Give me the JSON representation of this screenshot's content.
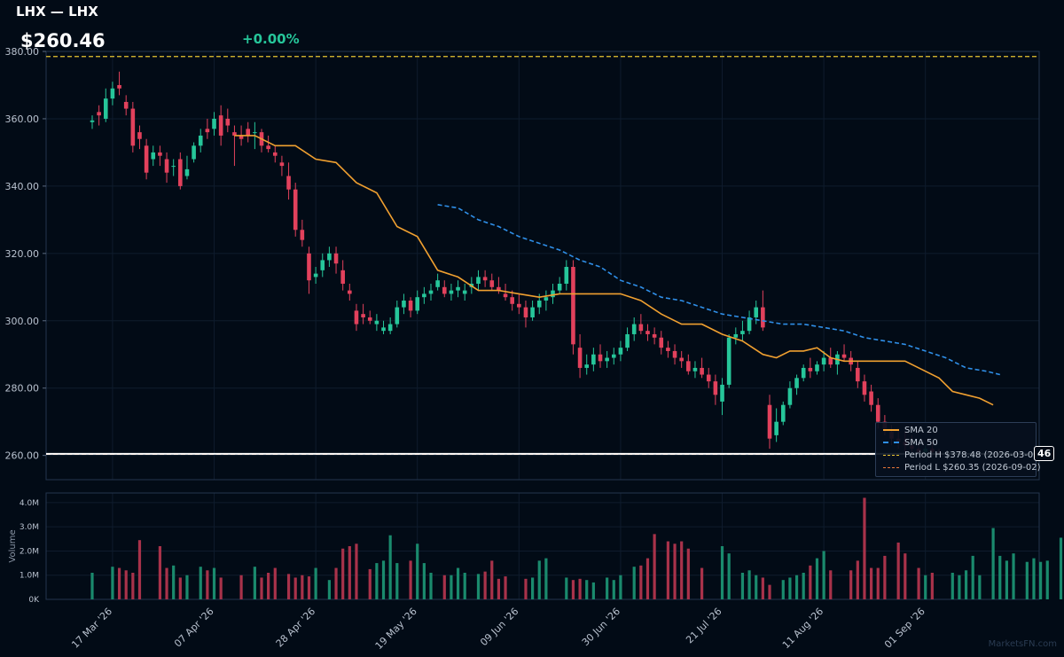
{
  "header": {
    "ticker": "LHX — LHX",
    "price": "$260.46",
    "change": "+0.00%"
  },
  "watermark": "MarketsFN.com",
  "price_tag": "46",
  "colors": {
    "up": "#26c69a",
    "down": "#e2415c",
    "sma20": "#f0a030",
    "sma50": "#2f8fe8",
    "period_high": "#e8c531",
    "period_low": "#e8783a",
    "last_price": "#ffffff"
  },
  "legend": [
    {
      "label": "SMA 20",
      "style": "solid",
      "color": "#f0a030"
    },
    {
      "label": "SMA 50",
      "style": "dashed",
      "color": "#2f8fe8"
    },
    {
      "label": "Period H $378.48 (2026-03-02)",
      "style": "dashed",
      "color": "#e8c531"
    },
    {
      "label": "Period L $260.35 (2026-09-02)",
      "style": "dashed",
      "color": "#e8783a"
    }
  ],
  "chart_data": [
    {
      "type": "candlestick",
      "ylim": [
        252.8,
        380.0
      ],
      "yticks": [
        260,
        280,
        300,
        320,
        340,
        360,
        380
      ],
      "ytick_labels": [
        "260.00",
        "280.00",
        "300.00",
        "320.00",
        "340.00",
        "360.00",
        "380.00"
      ],
      "x_labels": [
        {
          "i": 3,
          "label": "17 Mar '26"
        },
        {
          "i": 18,
          "label": "07 Apr '26"
        },
        {
          "i": 33,
          "label": "28 Apr '26"
        },
        {
          "i": 48,
          "label": "19 May '26"
        },
        {
          "i": 63,
          "label": "09 Jun '26"
        },
        {
          "i": 78,
          "label": "30 Jun '26"
        },
        {
          "i": 93,
          "label": "21 Jul '26"
        },
        {
          "i": 108,
          "label": "11 Aug '26"
        },
        {
          "i": 123,
          "label": "01 Sep '26"
        }
      ],
      "period_high": 378.48,
      "period_low": 260.35,
      "last_price": 260.46,
      "candles": [
        [
          359,
          361,
          357,
          359.5
        ],
        [
          362,
          364,
          358,
          361
        ],
        [
          360,
          369,
          359,
          366
        ],
        [
          366,
          371,
          364,
          369
        ],
        [
          370,
          374,
          367,
          369
        ],
        [
          365,
          367,
          361,
          363
        ],
        [
          363,
          365,
          350,
          352
        ],
        [
          356,
          358,
          351,
          354
        ],
        [
          352,
          354,
          342,
          344
        ],
        [
          348,
          352,
          346,
          350
        ],
        [
          350,
          352,
          346,
          349
        ],
        [
          348,
          350,
          341,
          344
        ],
        [
          346,
          348,
          343,
          346
        ],
        [
          348,
          350,
          339,
          340
        ],
        [
          343,
          349,
          342,
          345
        ],
        [
          348,
          353,
          347,
          352
        ],
        [
          352,
          357,
          350,
          355
        ],
        [
          357,
          360,
          354,
          356
        ],
        [
          357,
          362,
          355,
          360
        ],
        [
          361,
          364,
          352,
          355
        ],
        [
          360,
          363,
          356,
          358
        ],
        [
          356,
          358,
          346,
          355
        ],
        [
          355,
          358,
          352,
          354
        ],
        [
          357,
          359,
          353,
          355
        ],
        [
          356,
          359,
          351,
          356
        ],
        [
          356,
          357,
          350,
          352
        ],
        [
          352,
          355,
          350,
          351
        ],
        [
          350,
          352,
          347,
          349
        ],
        [
          347,
          349,
          343,
          346
        ],
        [
          343,
          347,
          336,
          339
        ],
        [
          339,
          341,
          325,
          327
        ],
        [
          327,
          330,
          322,
          324
        ],
        [
          320,
          322,
          308,
          312
        ],
        [
          313,
          316,
          311,
          314
        ],
        [
          315,
          320,
          313,
          318
        ],
        [
          318,
          322,
          316,
          320
        ],
        [
          320,
          322,
          314,
          317
        ],
        [
          315,
          318,
          309,
          311
        ],
        [
          309,
          311,
          306,
          308
        ],
        [
          303,
          305,
          297,
          299
        ],
        [
          302,
          305,
          299,
          301
        ],
        [
          301,
          303,
          299,
          300
        ],
        [
          299,
          302,
          297,
          300
        ],
        [
          297,
          300,
          296,
          298
        ],
        [
          297,
          301,
          296,
          299
        ],
        [
          299,
          306,
          298,
          304
        ],
        [
          304,
          308,
          302,
          306
        ],
        [
          306,
          307,
          301,
          303
        ],
        [
          303,
          309,
          302,
          307
        ],
        [
          307,
          310,
          305,
          308
        ],
        [
          308,
          311,
          306,
          309
        ],
        [
          310,
          314,
          309,
          312
        ],
        [
          310,
          312,
          307,
          308
        ],
        [
          308,
          311,
          306,
          309
        ],
        [
          309,
          312,
          307,
          310
        ],
        [
          308,
          311,
          306,
          309
        ],
        [
          310,
          313,
          308,
          311
        ],
        [
          311,
          315,
          309,
          313
        ],
        [
          313,
          315,
          310,
          312
        ],
        [
          312,
          314,
          309,
          310
        ],
        [
          310,
          313,
          308,
          309
        ],
        [
          308,
          311,
          306,
          307
        ],
        [
          307,
          309,
          303,
          305
        ],
        [
          305,
          308,
          302,
          304
        ],
        [
          304,
          306,
          298,
          301
        ],
        [
          301,
          306,
          300,
          304
        ],
        [
          304,
          308,
          302,
          306
        ],
        [
          306,
          309,
          303,
          307
        ],
        [
          307,
          311,
          305,
          309
        ],
        [
          309,
          313,
          308,
          311
        ],
        [
          311,
          318,
          309,
          316
        ],
        [
          316,
          318,
          290,
          293
        ],
        [
          292,
          296,
          283,
          286
        ],
        [
          286,
          290,
          284,
          287
        ],
        [
          287,
          292,
          285,
          290
        ],
        [
          290,
          293,
          286,
          288
        ],
        [
          288,
          291,
          286,
          289
        ],
        [
          289,
          292,
          287,
          290
        ],
        [
          290,
          294,
          288,
          292
        ],
        [
          292,
          298,
          291,
          296
        ],
        [
          296,
          301,
          294,
          299
        ],
        [
          299,
          302,
          296,
          297
        ],
        [
          297,
          299,
          294,
          296
        ],
        [
          296,
          298,
          293,
          295
        ],
        [
          295,
          297,
          290,
          292
        ],
        [
          292,
          294,
          289,
          291
        ],
        [
          291,
          293,
          287,
          289
        ],
        [
          289,
          291,
          286,
          288
        ],
        [
          288,
          290,
          284,
          285
        ],
        [
          285,
          288,
          283,
          286
        ],
        [
          286,
          289,
          283,
          284
        ],
        [
          284,
          286,
          280,
          282
        ],
        [
          282,
          284,
          275,
          278
        ],
        [
          276,
          283,
          272,
          281
        ],
        [
          281,
          296,
          280,
          295
        ],
        [
          295,
          298,
          293,
          296
        ],
        [
          296,
          300,
          294,
          297
        ],
        [
          297,
          303,
          296,
          301
        ],
        [
          301,
          306,
          299,
          304
        ],
        [
          304,
          309,
          297,
          298
        ],
        [
          275,
          278,
          262,
          265
        ],
        [
          266,
          274,
          264,
          270
        ],
        [
          270,
          276,
          269,
          275
        ],
        [
          275,
          282,
          274,
          280
        ],
        [
          280,
          284,
          278,
          283
        ],
        [
          283,
          287,
          282,
          286
        ],
        [
          286,
          289,
          283,
          285
        ],
        [
          285,
          288,
          284,
          287
        ],
        [
          287,
          291,
          285,
          289
        ],
        [
          289,
          292,
          286,
          287
        ],
        [
          287,
          291,
          284,
          290
        ],
        [
          290,
          293,
          288,
          289
        ],
        [
          289,
          291,
          285,
          287
        ],
        [
          286,
          288,
          280,
          282
        ],
        [
          282,
          284,
          276,
          278
        ],
        [
          279,
          281,
          273,
          275
        ],
        [
          275,
          277,
          268,
          270
        ],
        [
          270,
          272,
          266,
          268
        ],
        [
          267,
          269,
          263,
          265
        ],
        [
          265,
          268,
          262,
          264
        ],
        [
          264,
          267,
          261,
          263
        ],
        [
          263,
          266,
          261,
          262
        ],
        [
          262,
          264,
          260,
          261
        ],
        [
          261,
          263,
          260,
          262
        ],
        [
          262,
          264,
          260,
          261
        ],
        [
          261,
          262,
          260,
          260.5
        ]
      ],
      "sma20": [
        {
          "i": 21,
          "v": 355
        },
        {
          "i": 24,
          "v": 355
        },
        {
          "i": 27,
          "v": 352
        },
        {
          "i": 30,
          "v": 352
        },
        {
          "i": 33,
          "v": 348
        },
        {
          "i": 36,
          "v": 347
        },
        {
          "i": 39,
          "v": 341
        },
        {
          "i": 42,
          "v": 338
        },
        {
          "i": 45,
          "v": 328
        },
        {
          "i": 48,
          "v": 325
        },
        {
          "i": 51,
          "v": 315
        },
        {
          "i": 54,
          "v": 313
        },
        {
          "i": 57,
          "v": 309
        },
        {
          "i": 60,
          "v": 309
        },
        {
          "i": 63,
          "v": 308
        },
        {
          "i": 66,
          "v": 307
        },
        {
          "i": 69,
          "v": 308
        },
        {
          "i": 72,
          "v": 308
        },
        {
          "i": 75,
          "v": 308
        },
        {
          "i": 78,
          "v": 308
        },
        {
          "i": 81,
          "v": 306
        },
        {
          "i": 84,
          "v": 302
        },
        {
          "i": 87,
          "v": 299
        },
        {
          "i": 90,
          "v": 299
        },
        {
          "i": 93,
          "v": 296
        },
        {
          "i": 96,
          "v": 294
        },
        {
          "i": 99,
          "v": 290
        },
        {
          "i": 101,
          "v": 289
        },
        {
          "i": 103,
          "v": 291
        },
        {
          "i": 105,
          "v": 291
        },
        {
          "i": 107,
          "v": 292
        },
        {
          "i": 109,
          "v": 289
        },
        {
          "i": 111,
          "v": 288
        },
        {
          "i": 114,
          "v": 288
        },
        {
          "i": 117,
          "v": 288
        },
        {
          "i": 120,
          "v": 288
        },
        {
          "i": 123,
          "v": 285
        },
        {
          "i": 125,
          "v": 283
        },
        {
          "i": 127,
          "v": 279
        },
        {
          "i": 129,
          "v": 278
        },
        {
          "i": 131,
          "v": 277
        },
        {
          "i": 133,
          "v": 275
        }
      ],
      "sma50": [
        {
          "i": 51,
          "v": 334.5
        },
        {
          "i": 54,
          "v": 333.5
        },
        {
          "i": 57,
          "v": 330
        },
        {
          "i": 60,
          "v": 328
        },
        {
          "i": 63,
          "v": 325
        },
        {
          "i": 66,
          "v": 323
        },
        {
          "i": 69,
          "v": 321
        },
        {
          "i": 72,
          "v": 318
        },
        {
          "i": 75,
          "v": 316
        },
        {
          "i": 78,
          "v": 312
        },
        {
          "i": 81,
          "v": 310
        },
        {
          "i": 84,
          "v": 307
        },
        {
          "i": 87,
          "v": 306
        },
        {
          "i": 90,
          "v": 304
        },
        {
          "i": 93,
          "v": 302
        },
        {
          "i": 96,
          "v": 301
        },
        {
          "i": 99,
          "v": 300
        },
        {
          "i": 102,
          "v": 299
        },
        {
          "i": 105,
          "v": 299
        },
        {
          "i": 108,
          "v": 298
        },
        {
          "i": 111,
          "v": 297
        },
        {
          "i": 114,
          "v": 295
        },
        {
          "i": 117,
          "v": 294
        },
        {
          "i": 120,
          "v": 293
        },
        {
          "i": 123,
          "v": 291
        },
        {
          "i": 126,
          "v": 289
        },
        {
          "i": 129,
          "v": 286
        },
        {
          "i": 132,
          "v": 285
        },
        {
          "i": 134,
          "v": 284
        }
      ]
    },
    {
      "type": "bar",
      "ylabel": "Volume",
      "ylim": [
        0,
        4400000
      ],
      "yticks": [
        0,
        1000000,
        2000000,
        3000000,
        4000000
      ],
      "ytick_labels": [
        "0K",
        "1.0M",
        "2.0M",
        "3.0M",
        "4.0M"
      ],
      "volumes": [
        1.1,
        0,
        0,
        1.35,
        1.3,
        1.2,
        1.1,
        2.45,
        0,
        0,
        2.2,
        1.3,
        1.4,
        0.9,
        1.0,
        0,
        1.35,
        1.2,
        1.3,
        0.9,
        0,
        0,
        1.0,
        0,
        1.35,
        0.9,
        1.1,
        1.3,
        0,
        1.05,
        0.9,
        1.0,
        0.95,
        1.3,
        0,
        0.8,
        1.3,
        2.1,
        2.2,
        2.3,
        0,
        1.25,
        1.5,
        1.6,
        2.65,
        1.5,
        0,
        1.6,
        2.3,
        1.5,
        1.1,
        0,
        1.0,
        1.0,
        1.3,
        1.1,
        0,
        1.05,
        1.15,
        1.6,
        0.85,
        0.95,
        0,
        0,
        0.85,
        0.9,
        1.6,
        1.7,
        0,
        0,
        0.9,
        0.8,
        0.85,
        0.8,
        0.7,
        0,
        0.9,
        0.8,
        1.0,
        0,
        1.35,
        1.4,
        1.7,
        2.7,
        0,
        2.4,
        2.3,
        2.4,
        2.1,
        0,
        1.3,
        0,
        0,
        2.2,
        1.9,
        0,
        1.1,
        1.2,
        1.0,
        0.9,
        0.6,
        0,
        0.8,
        0.9,
        1.0,
        1.1,
        1.4,
        1.7,
        2.0,
        1.2,
        0,
        0,
        1.2,
        1.6,
        4.2,
        1.3,
        1.3,
        1.8,
        0,
        2.35,
        1.9,
        0,
        1.3,
        1.0,
        1.1,
        0,
        0,
        1.1,
        1.0,
        1.2,
        1.8,
        1.0,
        0,
        2.95,
        1.8,
        1.6,
        1.9,
        0,
        1.55,
        1.7,
        1.55,
        1.6,
        0,
        2.55,
        1.3,
        0.05
      ],
      "directions": []
    }
  ]
}
